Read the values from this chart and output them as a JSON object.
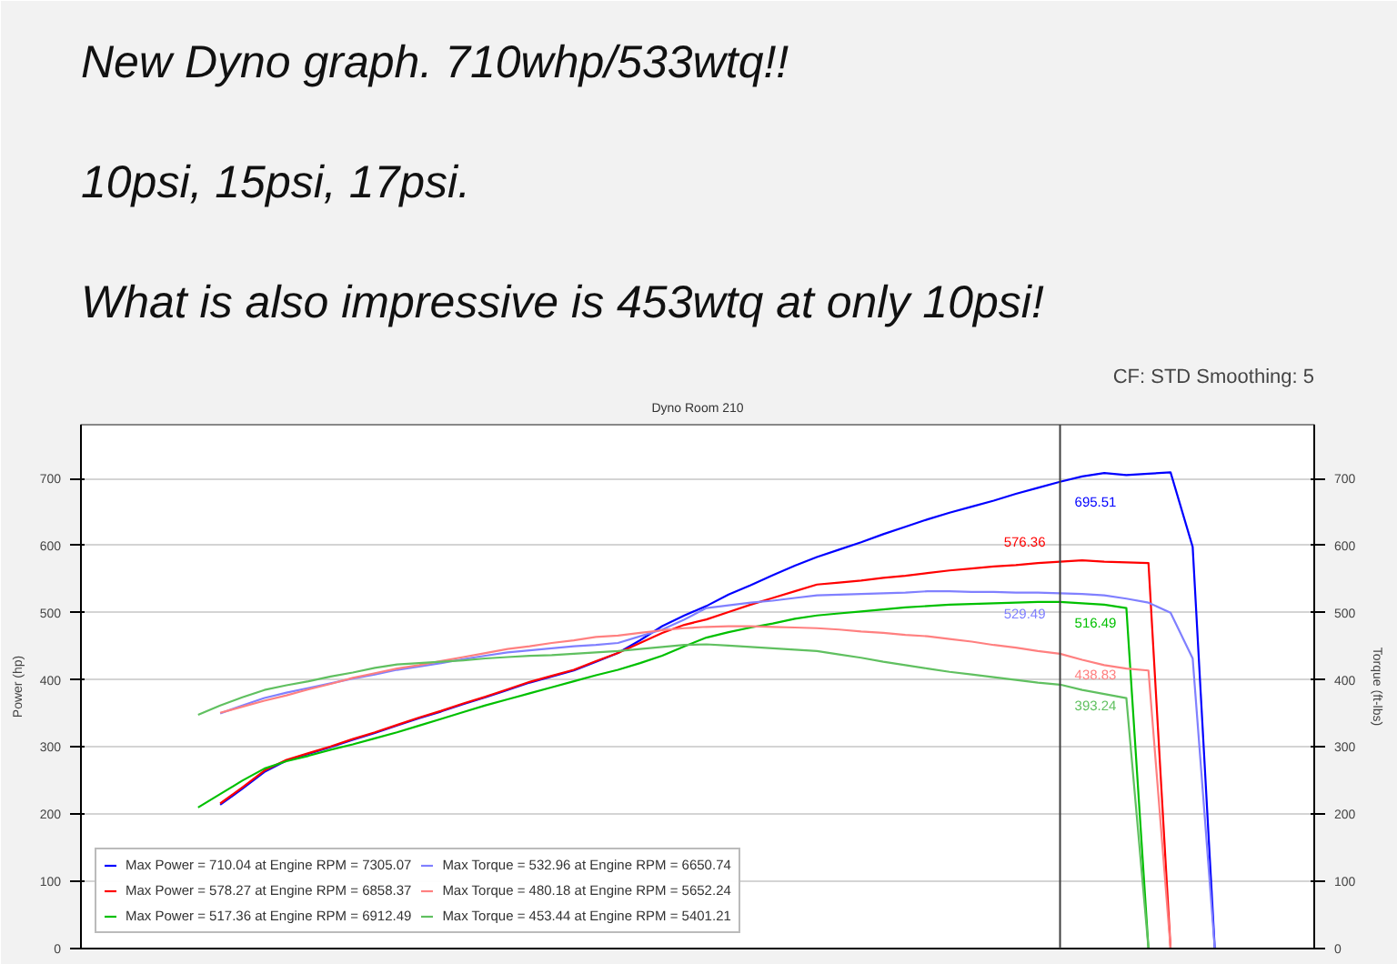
{
  "chart_data": {
    "type": "line",
    "title": "New Dyno graph. 710whp/533wtq!!",
    "subtitle": "Dyno Room 210",
    "annotations": [
      "10psi, 15psi, 17psi.",
      "What is also impressive is 453wtq at only 10psi!",
      "CF: STD Smoothing: 5",
      {
        "text": "695.51",
        "y": 695.51
      },
      {
        "text": "576.36",
        "y": 576.36
      },
      {
        "text": "529.49",
        "y": 529.49
      },
      {
        "text": "516.49",
        "y": 516.49
      },
      {
        "text": "438.83",
        "y": 438.83
      },
      {
        "text": "393.24",
        "y": 393.24
      }
    ],
    "ylabel": "Power (hp)",
    "y2label": "Torque (ft-lbs)",
    "categories": [
      null,
      null,
      null,
      null,
      null,
      null,
      null,
      null,
      null,
      null,
      null,
      null,
      null,
      null,
      null,
      null,
      null,
      null,
      null,
      null,
      null,
      null,
      null,
      null,
      null,
      null,
      null,
      null,
      null,
      null,
      null,
      null,
      null,
      null,
      null,
      null,
      null,
      null,
      null,
      null,
      null,
      null,
      null,
      null,
      null,
      null,
      null,
      null,
      null,
      null,
      null,
      null,
      null,
      null,
      null,
      null
    ],
    "series": [
      {
        "name": "Max Power = 710.04 at Engine RPM = 7305.07",
        "color": "#0000ff",
        "values": [
          null,
          null,
          null,
          null,
          null,
          null,
          214,
          238,
          263,
          280,
          290,
          300,
          311,
          321,
          332,
          343,
          353,
          364,
          374,
          385,
          396,
          405,
          414,
          427,
          440,
          459,
          480,
          496,
          510,
          527,
          541,
          556,
          570,
          583,
          594,
          605,
          617,
          628,
          639,
          649,
          658,
          667,
          677,
          686,
          695,
          703,
          708,
          705,
          707,
          709,
          598,
          0,
          null,
          null,
          null,
          null
        ]
      },
      {
        "name": "Max Power = 578.27 at Engine RPM = 6858.37",
        "color": "#ff0000",
        "values": [
          null,
          null,
          null,
          null,
          null,
          null,
          216,
          240,
          265,
          281,
          291,
          301,
          312,
          322,
          333,
          344,
          354,
          365,
          375,
          386,
          397,
          406,
          415,
          428,
          440,
          455,
          470,
          482,
          490,
          501,
          512,
          522,
          532,
          542,
          545,
          548,
          552,
          555,
          559,
          563,
          566,
          569,
          571,
          574,
          576,
          578,
          576,
          575,
          574,
          0,
          null,
          null,
          null,
          null,
          null,
          null
        ]
      },
      {
        "name": "Max Power = 517.36 at Engine RPM = 6912.49",
        "color": "#00c000",
        "values": [
          null,
          null,
          null,
          null,
          null,
          210,
          230,
          250,
          268,
          279,
          287,
          296,
          304,
          313,
          322,
          332,
          342,
          352,
          362,
          371,
          380,
          389,
          398,
          407,
          415,
          425,
          436,
          450,
          463,
          471,
          478,
          484,
          491,
          496,
          499,
          502,
          505,
          508,
          510,
          512,
          513,
          514,
          515,
          516,
          516,
          514,
          512,
          507,
          0,
          null,
          null,
          null,
          null,
          null,
          null,
          null
        ]
      },
      {
        "name": "Max Torque = 532.96 at Engine RPM = 6650.74",
        "color": "#8080ff",
        "values": [
          null,
          null,
          null,
          null,
          null,
          null,
          350,
          362,
          373,
          381,
          388,
          395,
          402,
          408,
          415,
          420,
          425,
          431,
          436,
          441,
          444,
          447,
          450,
          452,
          455,
          465,
          475,
          490,
          507,
          511,
          515,
          518,
          522,
          526,
          527,
          528,
          529,
          530,
          532,
          532,
          531,
          531,
          530,
          530,
          529,
          528,
          526,
          521,
          515,
          500,
          432,
          0,
          null,
          null,
          null,
          null
        ]
      },
      {
        "name": "Max Torque = 480.18 at Engine RPM = 5652.24",
        "color": "#ff8080",
        "values": [
          null,
          null,
          null,
          null,
          null,
          null,
          351,
          360,
          369,
          377,
          386,
          394,
          403,
          410,
          417,
          422,
          428,
          434,
          440,
          446,
          450,
          455,
          459,
          464,
          466,
          470,
          474,
          477,
          479,
          480,
          480,
          479,
          478,
          477,
          475,
          472,
          470,
          467,
          465,
          461,
          457,
          452,
          448,
          443,
          439,
          430,
          422,
          417,
          414,
          0,
          null,
          null,
          null,
          null,
          null,
          null
        ]
      },
      {
        "name": "Max Torque = 453.44 at Engine RPM = 5401.21",
        "color": "#60c060",
        "values": [
          null,
          null,
          null,
          null,
          null,
          348,
          362,
          374,
          385,
          392,
          398,
          405,
          411,
          418,
          423,
          425,
          427,
          429,
          432,
          434,
          436,
          437,
          439,
          441,
          443,
          446,
          449,
          452,
          453,
          451,
          449,
          447,
          445,
          443,
          438,
          433,
          427,
          422,
          417,
          412,
          408,
          404,
          400,
          396,
          393,
          385,
          379,
          373,
          0,
          null,
          null,
          null,
          null,
          null,
          null,
          null
        ]
      }
    ],
    "ylim": [
      0,
      780
    ],
    "yticks": [
      0,
      100,
      200,
      300,
      400,
      500,
      600,
      700
    ],
    "y2lim": [
      0,
      780
    ],
    "y2ticks": [
      0,
      100,
      200,
      300,
      400,
      500,
      600,
      700
    ],
    "grid": "y",
    "legend": "bottom left"
  }
}
